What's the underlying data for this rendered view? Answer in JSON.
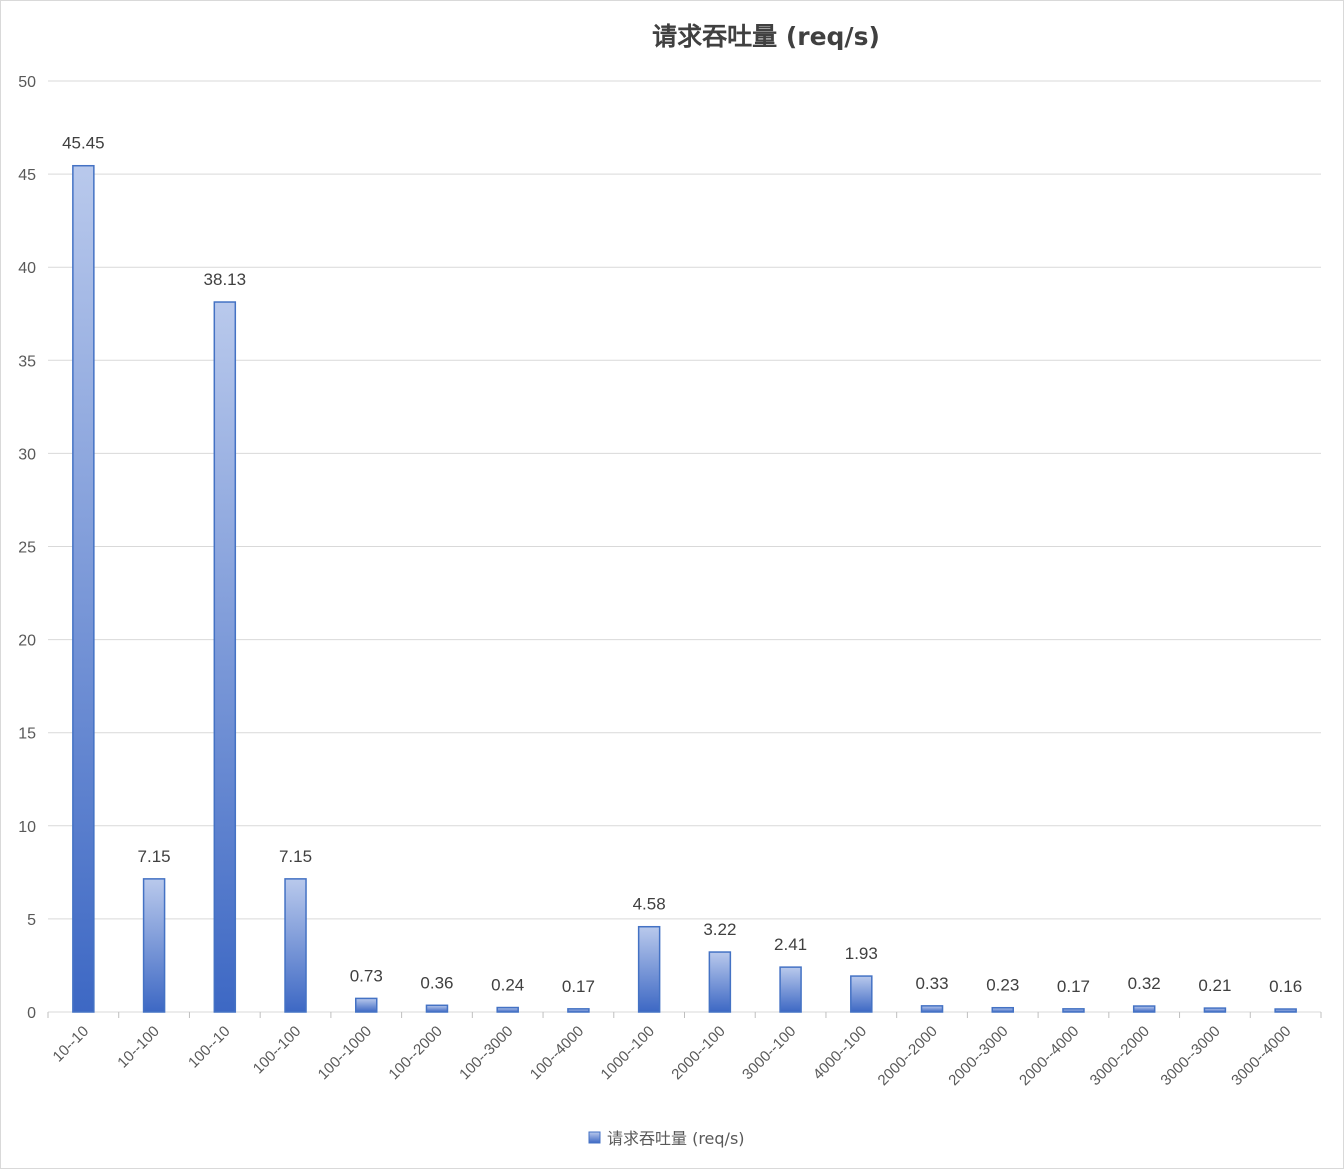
{
  "chart_data": {
    "type": "bar",
    "title": "请求吞吐量 (req/s)",
    "xlabel": "",
    "ylabel": "",
    "ylim": [
      0,
      50
    ],
    "y_ticks": [
      0,
      5,
      10,
      15,
      20,
      25,
      30,
      35,
      40,
      45,
      50
    ],
    "grid": true,
    "legend_position": "bottom",
    "categories": [
      "10--10",
      "10--100",
      "100--10",
      "100--100",
      "100--1000",
      "100--2000",
      "100--3000",
      "100--4000",
      "1000--100",
      "2000--100",
      "3000--100",
      "4000--100",
      "2000--2000",
      "2000--3000",
      "2000--4000",
      "3000--2000",
      "3000--3000",
      "3000--4000"
    ],
    "series": [
      {
        "name": "请求吞吐量 (req/s)",
        "color": "#4472c4",
        "values": [
          45.45,
          7.15,
          38.13,
          7.15,
          0.73,
          0.36,
          0.24,
          0.17,
          4.58,
          3.22,
          2.41,
          1.93,
          0.33,
          0.23,
          0.17,
          0.32,
          0.21,
          0.16
        ]
      }
    ]
  }
}
